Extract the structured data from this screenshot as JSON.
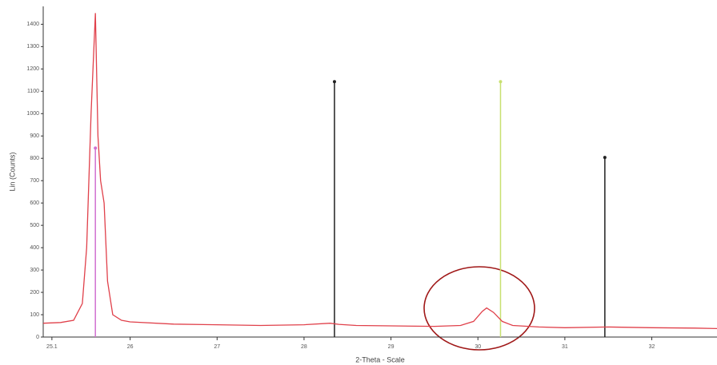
{
  "chart_data": {
    "type": "line",
    "xlabel": "2-Theta - Scale",
    "ylabel": "Lin (Counts)",
    "xlim": [
      25.0,
      32.75
    ],
    "ylim": [
      0,
      1480
    ],
    "xticks": [
      25.1,
      26,
      27,
      28,
      29,
      30,
      31,
      32
    ],
    "yticks": [
      0,
      100,
      200,
      300,
      400,
      500,
      600,
      700,
      800,
      900,
      1000,
      1100,
      1200,
      1300,
      1400
    ],
    "series": [
      {
        "color": "#e0404a",
        "x": [
          25.0,
          25.2,
          25.35,
          25.45,
          25.5,
          25.55,
          25.6,
          25.63,
          25.66,
          25.7,
          25.74,
          25.8,
          25.9,
          26.0,
          26.5,
          27.0,
          27.5,
          28.0,
          28.3,
          28.4,
          28.6,
          29.0,
          29.5,
          29.8,
          29.95,
          30.05,
          30.1,
          30.18,
          30.28,
          30.4,
          30.7,
          31.0,
          31.5,
          32.0,
          32.5,
          32.75
        ],
        "values": [
          62,
          65,
          75,
          150,
          400,
          1000,
          1450,
          900,
          700,
          600,
          250,
          100,
          75,
          68,
          58,
          55,
          52,
          55,
          62,
          57,
          52,
          50,
          48,
          52,
          70,
          115,
          130,
          110,
          70,
          52,
          45,
          42,
          45,
          42,
          40,
          38
        ]
      }
    ],
    "sticks": [
      {
        "color": "#d070d0",
        "x": 25.6,
        "value": 846
      },
      {
        "color": "#202020",
        "x": 28.35,
        "value": 1143
      },
      {
        "color": "#c8e070",
        "x": 30.26,
        "value": 1143
      },
      {
        "color": "#202020",
        "x": 31.46,
        "value": 804
      }
    ]
  }
}
